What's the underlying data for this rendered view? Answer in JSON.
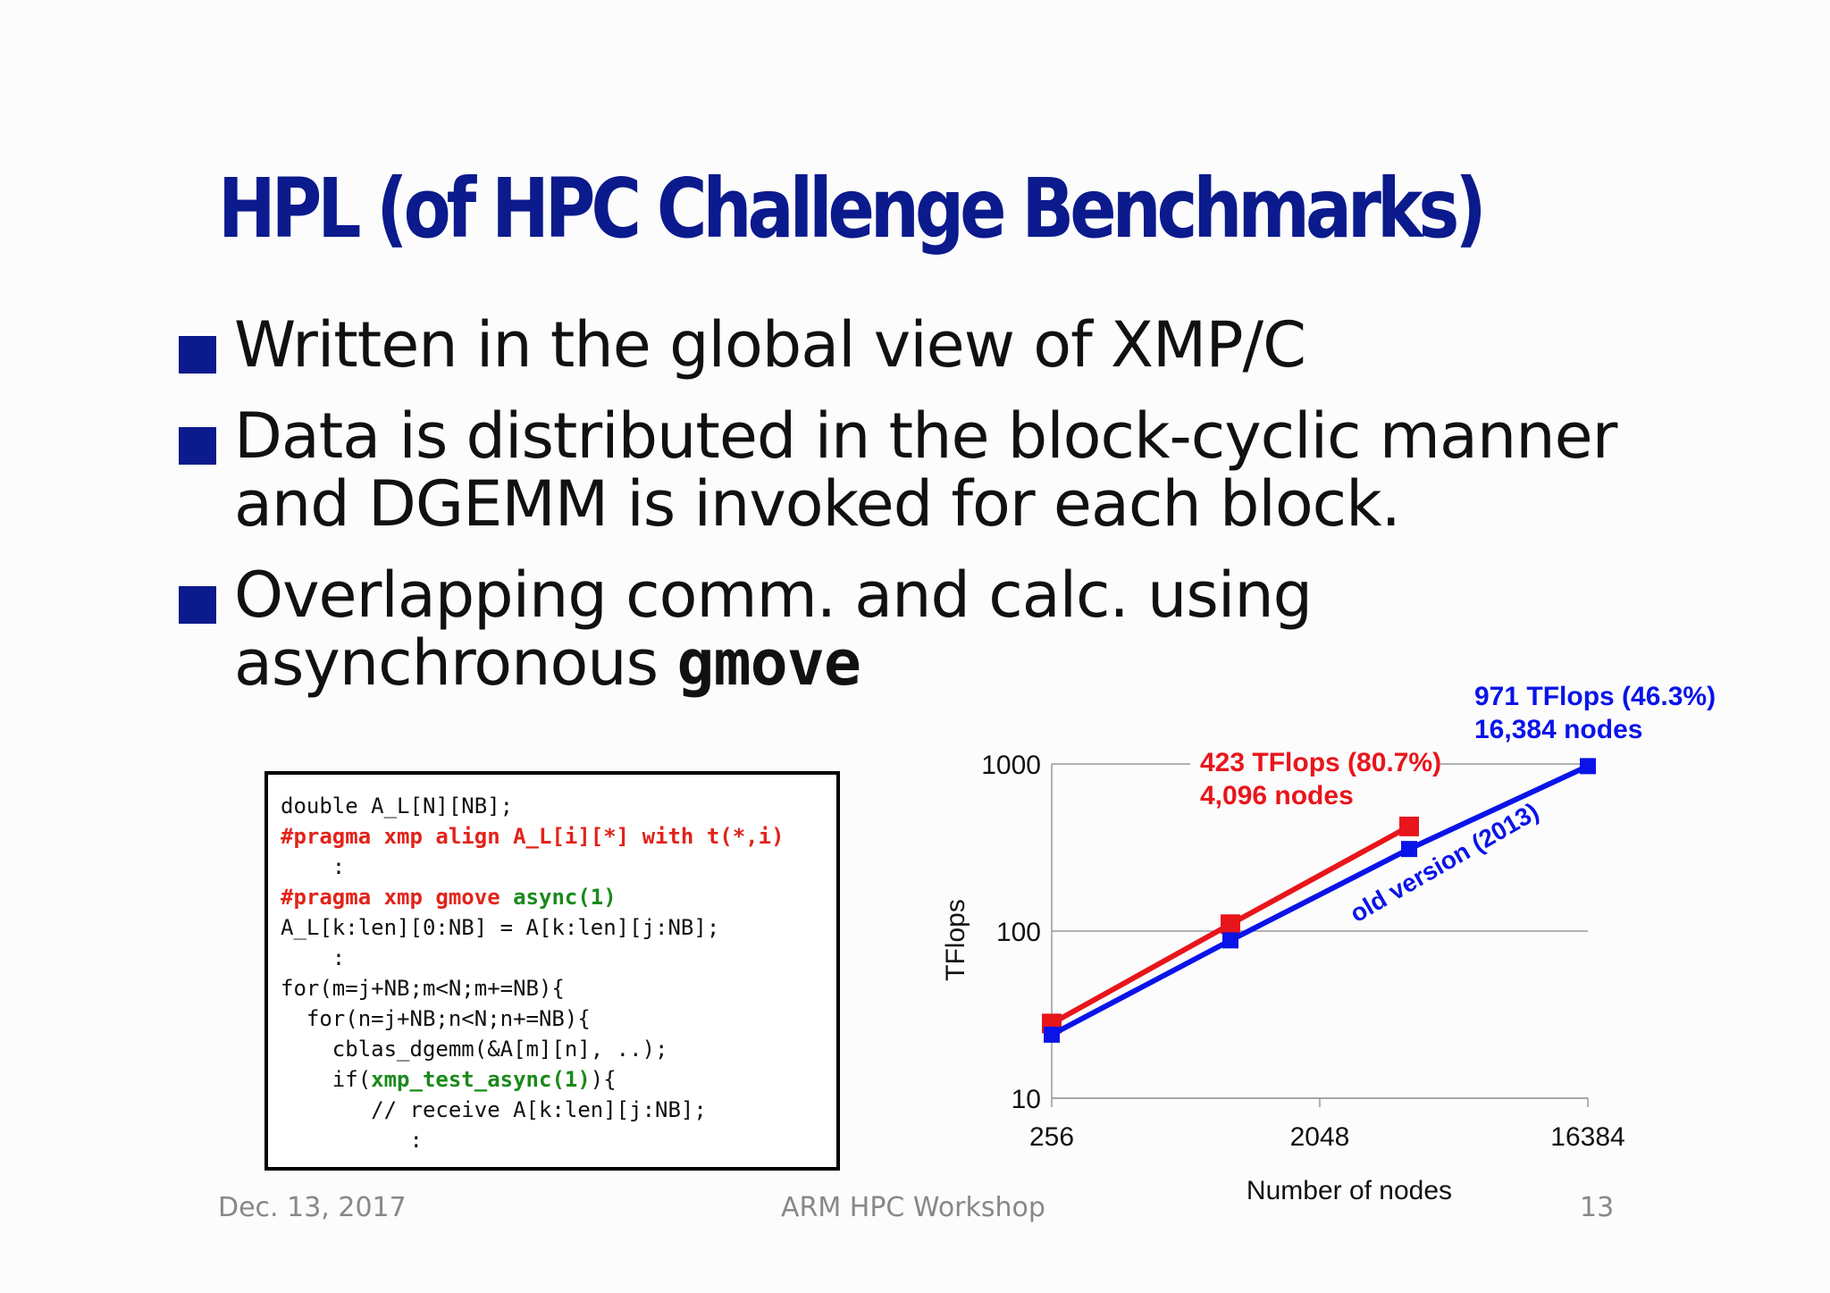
{
  "title": "HPL (of HPC Challenge Benchmarks)",
  "bullets": [
    {
      "text": "Written in the global view of XMP/C"
    },
    {
      "text": "Data is distributed in the block-cyclic manner and DGEMM is invoked for each block."
    },
    {
      "text": "Overlapping comm. and calc. using asynchronous ",
      "mono": "gmove"
    }
  ],
  "code_lines": [
    [
      {
        "t": "double A_L[N][NB];",
        "c": ""
      }
    ],
    [
      {
        "t": "#pragma xmp align A_L[i][*] with t(*,i)",
        "c": "red"
      }
    ],
    [
      {
        "t": "    :",
        "c": ""
      }
    ],
    [
      {
        "t": "#pragma xmp gmove ",
        "c": "red"
      },
      {
        "t": "async(1)",
        "c": "green"
      }
    ],
    [
      {
        "t": "A_L[k:len][0:NB] = A[k:len][j:NB];",
        "c": ""
      }
    ],
    [
      {
        "t": "    :",
        "c": ""
      }
    ],
    [
      {
        "t": "for(m=j+NB;m<N;m+=NB){",
        "c": ""
      }
    ],
    [
      {
        "t": "  for(n=j+NB;n<N;n+=NB){",
        "c": ""
      }
    ],
    [
      {
        "t": "    cblas_dgemm(&A[m][n], ..);",
        "c": ""
      }
    ],
    [
      {
        "t": "    if(",
        "c": ""
      },
      {
        "t": "xmp_test_async(1)",
        "c": "green"
      },
      {
        "t": "){",
        "c": ""
      }
    ],
    [
      {
        "t": "       // receive A[k:len][j:NB];",
        "c": ""
      }
    ],
    [
      {
        "t": "          :",
        "c": ""
      }
    ]
  ],
  "footer": {
    "date": "Dec. 13, 2017",
    "event": "ARM HPC Workshop",
    "page": "13"
  },
  "chart_data": {
    "type": "line",
    "xlabel": "Number of nodes",
    "ylabel": "TFlops",
    "x_scale": "log2",
    "y_scale": "log10",
    "xlim": [
      256,
      16384
    ],
    "ylim": [
      10,
      1000
    ],
    "x_ticks": [
      256,
      2048,
      16384
    ],
    "y_ticks": [
      10,
      100,
      1000
    ],
    "grid": "horizontal",
    "series": [
      {
        "color": "#e8151b",
        "points": [
          [
            256,
            28
          ],
          [
            1024,
            110
          ],
          [
            4096,
            423
          ]
        ]
      },
      {
        "color": "#0a14e8",
        "points": [
          [
            256,
            24
          ],
          [
            1024,
            88
          ],
          [
            4096,
            310
          ],
          [
            16384,
            971
          ]
        ]
      }
    ],
    "annotations": [
      {
        "lines": [
          "423 TFlops (80.7%)",
          "4,096 nodes"
        ],
        "color": "#e8151b"
      },
      {
        "lines": [
          "971 TFlops (46.3%)",
          "16,384 nodes"
        ],
        "color": "#0a14e8"
      },
      {
        "lines": [
          "old version (2013)"
        ],
        "color": "#0a14e8"
      }
    ]
  }
}
